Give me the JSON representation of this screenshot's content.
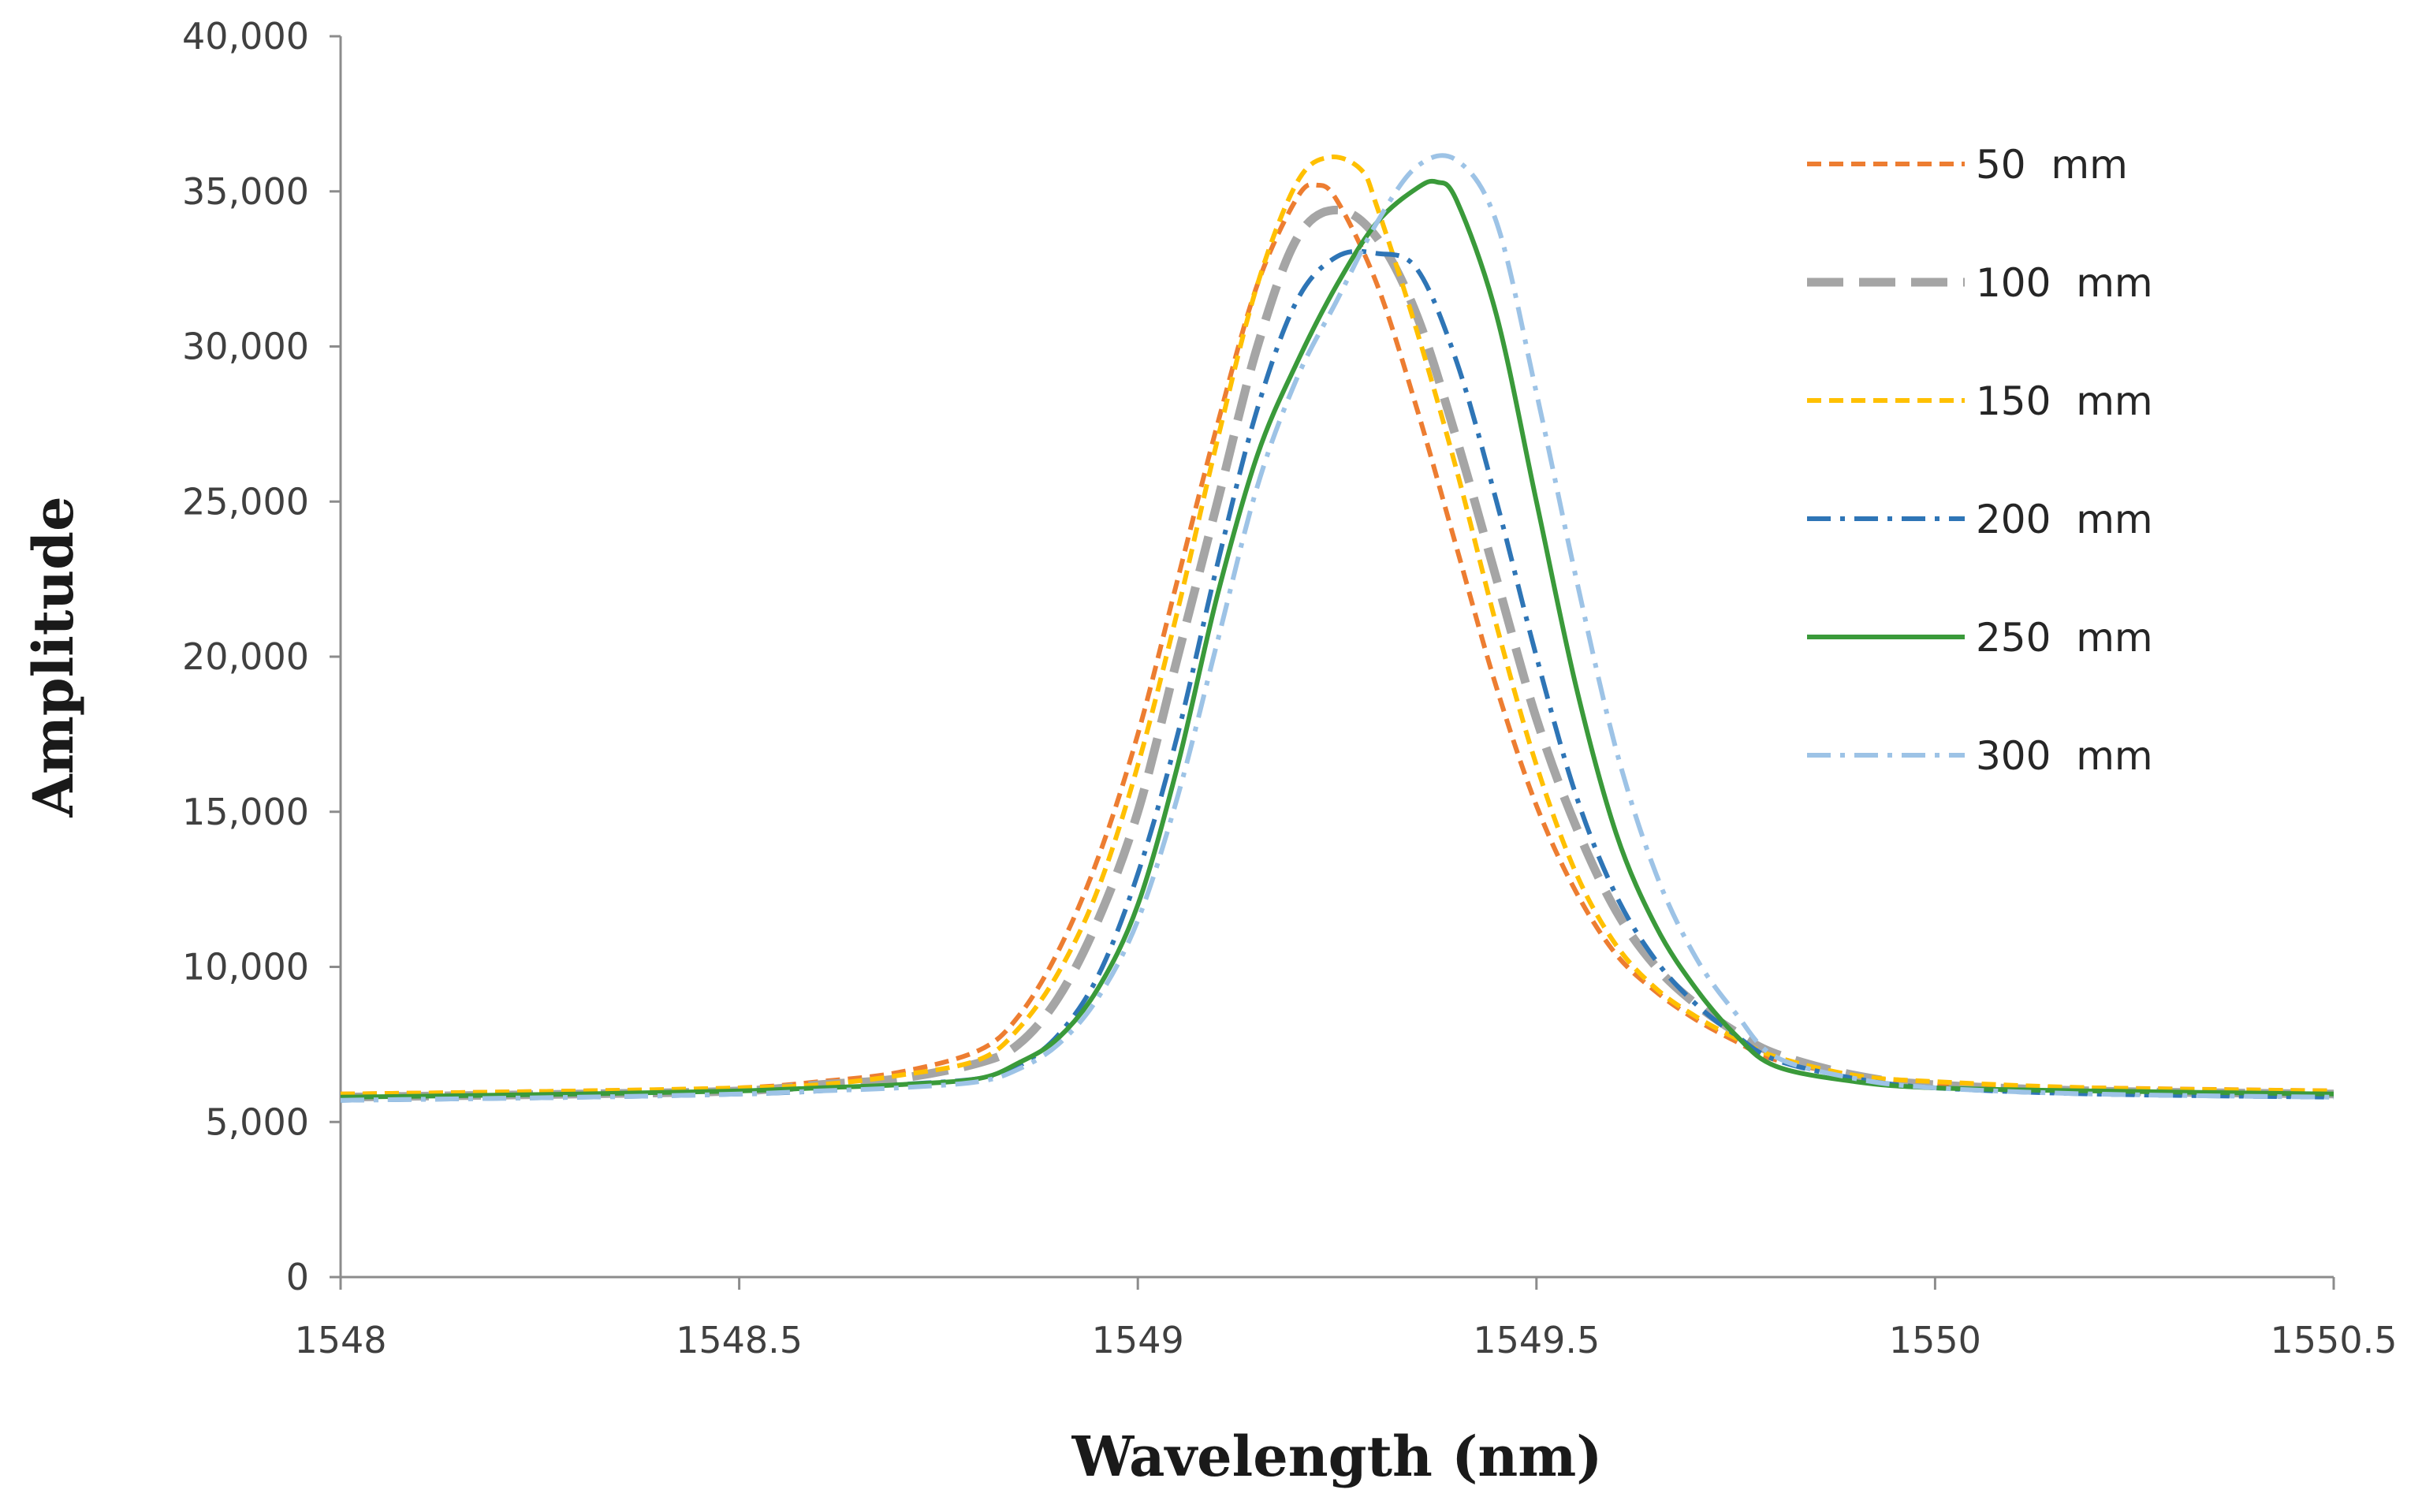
{
  "chart_data": {
    "type": "line",
    "title": "",
    "xlabel": "Wavelength (nm)",
    "ylabel": "Amplitude",
    "xlim": [
      1548,
      1550.5
    ],
    "ylim": [
      0,
      40000
    ],
    "xticks": [
      1548,
      1548.5,
      1549,
      1549.5,
      1550,
      1550.5
    ],
    "xtick_labels": [
      "1548",
      "1548.5",
      "1549",
      "1549.5",
      "1550",
      "1550.5"
    ],
    "yticks": [
      0,
      5000,
      10000,
      15000,
      20000,
      25000,
      30000,
      35000,
      40000
    ],
    "ytick_labels": [
      "0",
      "5,000",
      "10,000",
      "15,000",
      "20,000",
      "25,000",
      "30,000",
      "35,000",
      "40,000"
    ],
    "grid": false,
    "legend_position": "top-right",
    "series": [
      {
        "name": "50  mm",
        "color": "#ED7D31",
        "style": "dashed",
        "x": [
          1548,
          1548.3,
          1548.5,
          1548.6,
          1548.7,
          1548.8,
          1548.85,
          1548.9,
          1548.95,
          1549,
          1549.05,
          1549.1,
          1549.15,
          1549.2,
          1549.225,
          1549.25,
          1549.3,
          1549.35,
          1549.4,
          1549.45,
          1549.5,
          1549.55,
          1549.6,
          1549.65,
          1549.7,
          1549.75,
          1549.8,
          1549.9,
          1550,
          1550.2,
          1550.5
        ],
        "y": [
          5900,
          6000,
          6100,
          6300,
          6600,
          7300,
          8400,
          10500,
          13500,
          17500,
          22500,
          27500,
          32000,
          34800,
          35200,
          34700,
          32000,
          28000,
          23500,
          19000,
          15200,
          12400,
          10400,
          9200,
          8300,
          7600,
          7000,
          6500,
          6200,
          6100,
          6000
        ]
      },
      {
        "name": "100  mm",
        "color": "#A5A5A5",
        "style": "long-dash",
        "x": [
          1548,
          1548.3,
          1548.5,
          1548.6,
          1548.7,
          1548.8,
          1548.85,
          1548.9,
          1548.95,
          1549,
          1549.05,
          1549.1,
          1549.15,
          1549.2,
          1549.25,
          1549.3,
          1549.35,
          1549.4,
          1549.45,
          1549.5,
          1549.55,
          1549.6,
          1549.65,
          1549.7,
          1549.75,
          1549.8,
          1549.9,
          1550,
          1550.2,
          1550.5
        ],
        "y": [
          5800,
          5900,
          6000,
          6200,
          6400,
          6900,
          7500,
          9000,
          11500,
          15000,
          20000,
          25000,
          30000,
          33500,
          34400,
          33500,
          31000,
          27000,
          22500,
          18000,
          14500,
          11800,
          10000,
          8800,
          7900,
          7200,
          6500,
          6200,
          6000,
          5900
        ]
      },
      {
        "name": "150  mm",
        "color": "#FFC000",
        "style": "dashed",
        "x": [
          1548,
          1548.3,
          1548.5,
          1548.6,
          1548.7,
          1548.8,
          1548.85,
          1548.9,
          1548.95,
          1549,
          1549.05,
          1549.1,
          1549.15,
          1549.2,
          1549.24,
          1549.28,
          1549.3,
          1549.35,
          1549.4,
          1549.45,
          1549.5,
          1549.55,
          1549.6,
          1549.65,
          1549.7,
          1549.75,
          1549.8,
          1549.9,
          1550,
          1550.2,
          1550.5
        ],
        "y": [
          5900,
          6000,
          6100,
          6200,
          6500,
          7000,
          8000,
          9800,
          12500,
          16500,
          21500,
          27000,
          32000,
          35300,
          36100,
          35700,
          34500,
          30500,
          26000,
          21000,
          16500,
          13000,
          10700,
          9300,
          8400,
          7700,
          7100,
          6500,
          6300,
          6100,
          6000
        ]
      },
      {
        "name": "200  mm",
        "color": "#2E75B6",
        "style": "dash-dot",
        "x": [
          1548,
          1548.3,
          1548.5,
          1548.6,
          1548.7,
          1548.8,
          1548.85,
          1548.9,
          1548.95,
          1549,
          1549.05,
          1549.1,
          1549.15,
          1549.2,
          1549.25,
          1549.3,
          1549.35,
          1549.4,
          1549.45,
          1549.5,
          1549.55,
          1549.6,
          1549.65,
          1549.7,
          1549.75,
          1549.8,
          1549.9,
          1550,
          1550.2,
          1550.5
        ],
        "y": [
          5700,
          5800,
          5900,
          6000,
          6200,
          6400,
          6800,
          7800,
          9700,
          13000,
          17500,
          23000,
          28000,
          31500,
          32900,
          33000,
          32500,
          29500,
          25000,
          20000,
          15500,
          12300,
          10200,
          8800,
          7800,
          7000,
          6400,
          6100,
          5900,
          5800
        ]
      },
      {
        "name": "250  mm",
        "color": "#3A9A3A",
        "style": "solid",
        "x": [
          1548,
          1548.3,
          1548.5,
          1548.6,
          1548.7,
          1548.8,
          1548.85,
          1548.9,
          1548.95,
          1549,
          1549.05,
          1549.1,
          1549.15,
          1549.2,
          1549.25,
          1549.3,
          1549.35,
          1549.375,
          1549.4,
          1549.45,
          1549.5,
          1549.55,
          1549.6,
          1549.65,
          1549.7,
          1549.75,
          1549.8,
          1549.9,
          1550,
          1550.2,
          1550.5
        ],
        "y": [
          5800,
          5900,
          6000,
          6100,
          6200,
          6400,
          6900,
          7700,
          9300,
          12000,
          16500,
          22000,
          26500,
          29500,
          32000,
          34000,
          35100,
          35300,
          34700,
          31000,
          25000,
          19000,
          14300,
          11300,
          9300,
          7800,
          6800,
          6300,
          6100,
          6000,
          5900
        ]
      },
      {
        "name": "300  mm",
        "color": "#9DC3E6",
        "style": "dash-dot",
        "x": [
          1548,
          1548.3,
          1548.5,
          1548.6,
          1548.7,
          1548.8,
          1548.85,
          1548.9,
          1548.95,
          1549,
          1549.05,
          1549.1,
          1549.15,
          1549.2,
          1549.25,
          1549.3,
          1549.35,
          1549.4,
          1549.45,
          1549.5,
          1549.55,
          1549.6,
          1549.65,
          1549.7,
          1549.75,
          1549.8,
          1549.9,
          1550,
          1550.2,
          1550.5
        ],
        "y": [
          5700,
          5800,
          5900,
          6000,
          6100,
          6300,
          6700,
          7500,
          9000,
          11500,
          15500,
          20500,
          25500,
          29000,
          31500,
          34000,
          35800,
          36000,
          34000,
          28500,
          22500,
          17000,
          13000,
          10300,
          8500,
          7100,
          6400,
          6100,
          5900,
          5800
        ]
      }
    ]
  }
}
